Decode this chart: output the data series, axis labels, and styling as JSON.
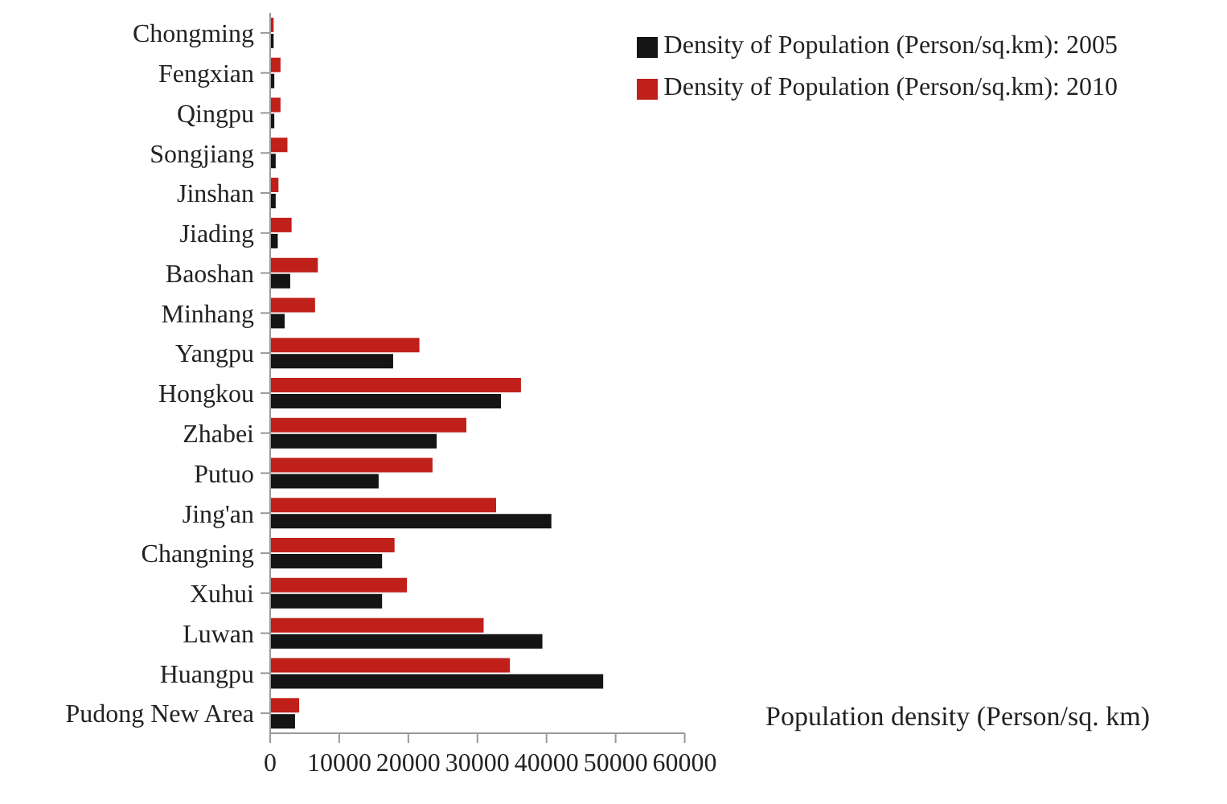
{
  "chart_data": {
    "type": "bar",
    "orientation": "horizontal",
    "xlabel": "Population density (Person/sq. km)",
    "categories": [
      "Chongming",
      "Fengxian",
      "Qingpu",
      "Songjiang",
      "Jinshan",
      "Jiading",
      "Baoshan",
      "Minhang",
      "Yangpu",
      "Hongkou",
      "Zhabei",
      "Putuo",
      "Jing'an",
      "Changning",
      "Xuhui",
      "Luwan",
      "Huangpu",
      "Pudong New Area"
    ],
    "series": [
      {
        "name": "Density of Population (Person/sq.km): 2010",
        "color": "#c0201a",
        "values": [
          500,
          1500,
          1500,
          2500,
          1200,
          3100,
          6900,
          6500,
          21600,
          36300,
          28400,
          23500,
          32700,
          18000,
          19800,
          30900,
          34700,
          4200
        ]
      },
      {
        "name": "Density of Population (Person/sq.km): 2005",
        "color": "#141414",
        "values": [
          500,
          600,
          600,
          800,
          800,
          1100,
          2900,
          2100,
          17800,
          33400,
          24100,
          15700,
          40700,
          16200,
          16200,
          39400,
          48200,
          3600
        ]
      }
    ],
    "xlim": [
      0,
      60000
    ],
    "xticks": [
      0,
      10000,
      20000,
      30000,
      40000,
      50000,
      60000
    ],
    "grid": false,
    "legend": "top right"
  }
}
